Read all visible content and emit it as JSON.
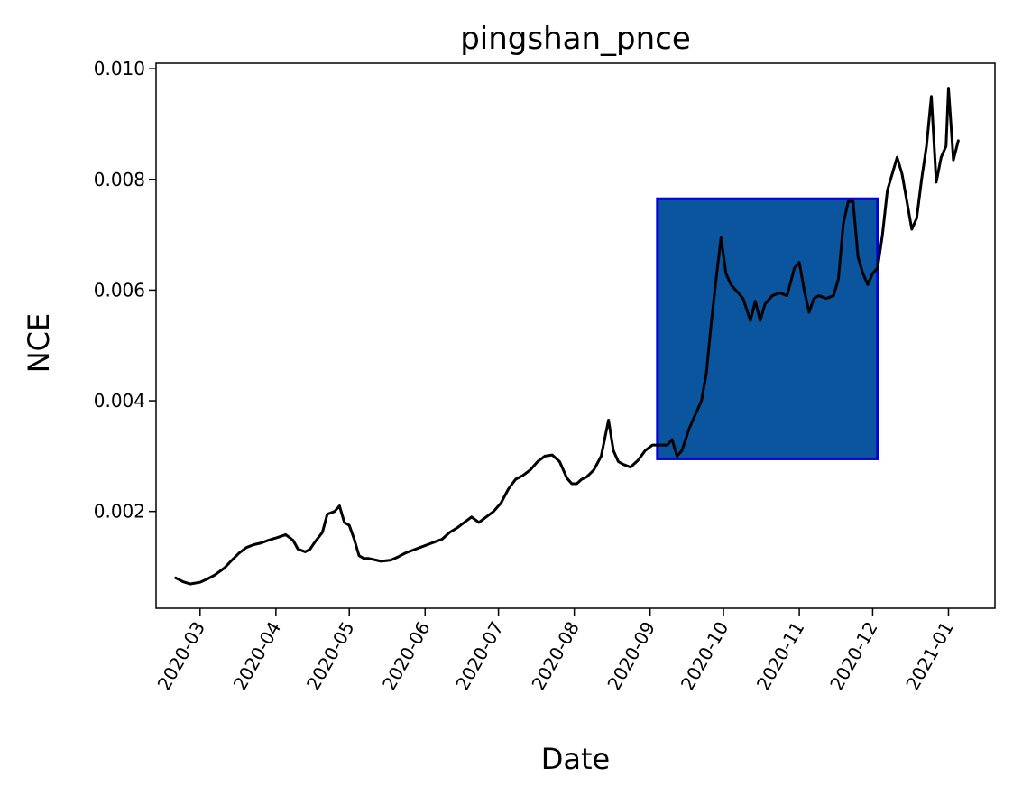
{
  "chart_data": {
    "type": "line",
    "title": "pingshan_pnce",
    "xlabel": "Date",
    "ylabel": "NCE",
    "xlim": [
      "2020-02-12",
      "2021-01-20"
    ],
    "ylim": [
      0.00025,
      0.0101
    ],
    "x_ticks": [
      "2020-03-01",
      "2020-04-01",
      "2020-05-01",
      "2020-06-01",
      "2020-07-01",
      "2020-08-01",
      "2020-09-01",
      "2020-10-01",
      "2020-11-01",
      "2020-12-01",
      "2021-01-01"
    ],
    "x_tick_labels": [
      "2020-03",
      "2020-04",
      "2020-05",
      "2020-06",
      "2020-07",
      "2020-08",
      "2020-09",
      "2020-10",
      "2020-11",
      "2020-12",
      "2021-01"
    ],
    "y_ticks": [
      0.002,
      0.004,
      0.006,
      0.008,
      0.01
    ],
    "y_tick_labels": [
      "0.002",
      "0.004",
      "0.006",
      "0.008",
      "0.010"
    ],
    "grid": false,
    "legend": "none",
    "line_color": "#000000",
    "highlight": {
      "x_start": "2020-09-04",
      "x_end": "2020-12-03",
      "y_start": 0.00295,
      "y_end": 0.00765,
      "fill_color": "#0b559f",
      "edge_color": "#0000dd"
    },
    "series": [
      {
        "x": [
          "2020-02-20",
          "2020-02-23",
          "2020-02-26",
          "2020-03-01",
          "2020-03-04",
          "2020-03-07",
          "2020-03-11",
          "2020-03-14",
          "2020-03-17",
          "2020-03-20",
          "2020-03-23",
          "2020-03-26",
          "2020-03-29",
          "2020-04-01",
          "2020-04-03",
          "2020-04-05",
          "2020-04-08",
          "2020-04-10",
          "2020-04-13",
          "2020-04-15",
          "2020-04-17",
          "2020-04-20",
          "2020-04-22",
          "2020-04-25",
          "2020-04-27",
          "2020-04-29",
          "2020-05-01",
          "2020-05-03",
          "2020-05-05",
          "2020-05-07",
          "2020-05-09",
          "2020-05-12",
          "2020-05-14",
          "2020-05-18",
          "2020-05-21",
          "2020-05-24",
          "2020-05-27",
          "2020-05-30",
          "2020-06-02",
          "2020-06-05",
          "2020-06-08",
          "2020-06-11",
          "2020-06-14",
          "2020-06-17",
          "2020-06-20",
          "2020-06-23",
          "2020-06-26",
          "2020-06-29",
          "2020-07-02",
          "2020-07-05",
          "2020-07-08",
          "2020-07-11",
          "2020-07-14",
          "2020-07-17",
          "2020-07-20",
          "2020-07-23",
          "2020-07-26",
          "2020-07-29",
          "2020-07-31",
          "2020-08-02",
          "2020-08-04",
          "2020-08-06",
          "2020-08-09",
          "2020-08-12",
          "2020-08-15",
          "2020-08-17",
          "2020-08-19",
          "2020-08-21",
          "2020-08-24",
          "2020-08-27",
          "2020-08-30",
          "2020-09-02",
          "2020-09-05",
          "2020-09-08",
          "2020-09-10",
          "2020-09-12",
          "2020-09-14",
          "2020-09-17",
          "2020-09-19",
          "2020-09-22",
          "2020-09-24",
          "2020-09-26",
          "2020-09-28",
          "2020-09-30",
          "2020-10-02",
          "2020-10-04",
          "2020-10-06",
          "2020-10-09",
          "2020-10-12",
          "2020-10-14",
          "2020-10-16",
          "2020-10-18",
          "2020-10-21",
          "2020-10-24",
          "2020-10-27",
          "2020-10-30",
          "2020-11-01",
          "2020-11-03",
          "2020-11-05",
          "2020-11-07",
          "2020-11-09",
          "2020-11-12",
          "2020-11-15",
          "2020-11-17",
          "2020-11-19",
          "2020-11-21",
          "2020-11-23",
          "2020-11-25",
          "2020-11-27",
          "2020-11-29",
          "2020-12-01",
          "2020-12-03",
          "2020-12-05",
          "2020-12-07",
          "2020-12-09",
          "2020-12-11",
          "2020-12-13",
          "2020-12-15",
          "2020-12-17",
          "2020-12-19",
          "2020-12-21",
          "2020-12-23",
          "2020-12-25",
          "2020-12-27",
          "2020-12-29",
          "2020-12-31",
          "2021-01-01",
          "2021-01-03",
          "2021-01-05"
        ],
        "values": [
          0.0008,
          0.00073,
          0.00069,
          0.00072,
          0.00078,
          0.00085,
          0.00098,
          0.00112,
          0.00125,
          0.00135,
          0.0014,
          0.00143,
          0.00148,
          0.00152,
          0.00155,
          0.00158,
          0.00148,
          0.00132,
          0.00127,
          0.00132,
          0.00145,
          0.00162,
          0.00195,
          0.002,
          0.0021,
          0.0018,
          0.00175,
          0.0015,
          0.0012,
          0.00115,
          0.00115,
          0.00112,
          0.0011,
          0.00112,
          0.00118,
          0.00125,
          0.0013,
          0.00135,
          0.0014,
          0.00145,
          0.0015,
          0.00162,
          0.0017,
          0.0018,
          0.0019,
          0.0018,
          0.0019,
          0.002,
          0.00215,
          0.0024,
          0.00258,
          0.00265,
          0.00275,
          0.0029,
          0.003,
          0.00302,
          0.0029,
          0.0026,
          0.0025,
          0.0025,
          0.00258,
          0.00262,
          0.00275,
          0.003,
          0.00365,
          0.0031,
          0.0029,
          0.00285,
          0.0028,
          0.00292,
          0.0031,
          0.0032,
          0.0032,
          0.0032,
          0.0033,
          0.003,
          0.0031,
          0.0035,
          0.0037,
          0.004,
          0.0045,
          0.0054,
          0.0062,
          0.00695,
          0.0063,
          0.0061,
          0.006,
          0.00585,
          0.00545,
          0.0058,
          0.00545,
          0.00575,
          0.0059,
          0.00595,
          0.0059,
          0.0064,
          0.0065,
          0.006,
          0.0056,
          0.00585,
          0.0059,
          0.00585,
          0.0059,
          0.0062,
          0.0072,
          0.0076,
          0.0076,
          0.0066,
          0.0063,
          0.0061,
          0.0063,
          0.0064,
          0.007,
          0.0078,
          0.0081,
          0.0084,
          0.0081,
          0.0076,
          0.0071,
          0.0073,
          0.008,
          0.0086,
          0.0095,
          0.00795,
          0.0084,
          0.0086,
          0.00965,
          0.00835,
          0.0087
        ]
      }
    ]
  }
}
